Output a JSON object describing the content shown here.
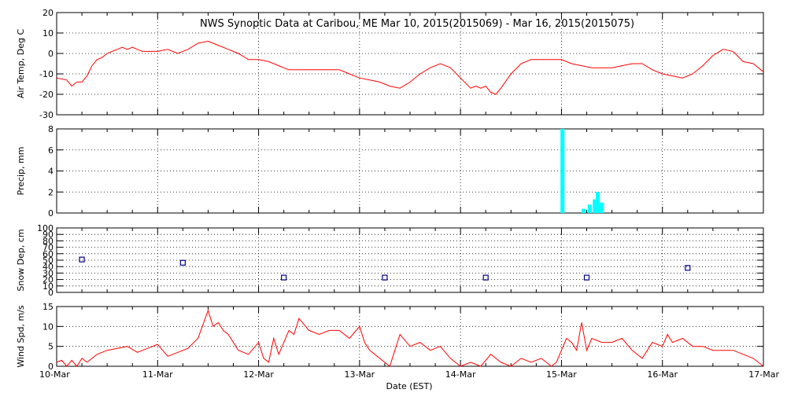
{
  "title": "NWS Synoptic Data at Caribou, ME    Mar 10, 2015(2015069) - Mar 16, 2015(2015075)",
  "xlabel": "Date (EST)",
  "x_ticks": [
    "10-Mar",
    "11-Mar",
    "12-Mar",
    "13-Mar",
    "14-Mar",
    "15-Mar",
    "16-Mar",
    "17-Mar"
  ],
  "colors": {
    "line": "#ff0000",
    "bar": "#00ffff",
    "marker": "#00008b",
    "axis": "#000000"
  },
  "chart_data": [
    {
      "type": "line",
      "ylabel": "Air Temp, Deg C",
      "ylim": [
        -30,
        20
      ],
      "yticks": [
        -30,
        -20,
        -10,
        0,
        10,
        20
      ],
      "grid": true,
      "series": [
        {
          "x": [
            0.0,
            0.1,
            0.15,
            0.2,
            0.25,
            0.3,
            0.35,
            0.4,
            0.45,
            0.5,
            0.55,
            0.6,
            0.65,
            0.7,
            0.75,
            0.8,
            0.85,
            0.9,
            1.0,
            1.1,
            1.2,
            1.3,
            1.4,
            1.5,
            1.6,
            1.7,
            1.8,
            1.9,
            2.0,
            2.1,
            2.2,
            2.3,
            2.4,
            2.5,
            2.6,
            2.7,
            2.8,
            2.9,
            3.0,
            3.1,
            3.2,
            3.3,
            3.4,
            3.5,
            3.6,
            3.7,
            3.8,
            3.9,
            4.0,
            4.1,
            4.15,
            4.2,
            4.25,
            4.3,
            4.35,
            4.4,
            4.5,
            4.6,
            4.7,
            4.8,
            4.9,
            5.0,
            5.1,
            5.2,
            5.3,
            5.4,
            5.5,
            5.6,
            5.7,
            5.8,
            5.9,
            6.0,
            6.1,
            6.2,
            6.3,
            6.4,
            6.5,
            6.6,
            6.7,
            6.8,
            6.9,
            7.0
          ],
          "y": [
            -12,
            -13,
            -16,
            -14,
            -14,
            -11,
            -6,
            -3,
            -2,
            0,
            1,
            2,
            3,
            2,
            3,
            2,
            1,
            1,
            1,
            2,
            0,
            2,
            5,
            6,
            4,
            2,
            0,
            -3,
            -3,
            -4,
            -6,
            -8,
            -8,
            -8,
            -8,
            -8,
            -8,
            -10,
            -12,
            -13,
            -14,
            -16,
            -17,
            -14,
            -10,
            -7,
            -5,
            -7,
            -12,
            -17,
            -16,
            -17,
            -16,
            -19,
            -20,
            -17,
            -10,
            -5,
            -3,
            -3,
            -3,
            -3,
            -5,
            -6,
            -7,
            -7,
            -7,
            -6,
            -5,
            -5,
            -8,
            -10,
            -11,
            -12,
            -10,
            -6,
            -1,
            2,
            1,
            -4,
            -5,
            -9
          ]
        }
      ]
    },
    {
      "type": "bar",
      "ylabel": "Precip, mm",
      "ylim": [
        0,
        8
      ],
      "yticks": [
        0,
        2,
        4,
        6,
        8
      ],
      "grid": true,
      "bar_width_days": 0.04,
      "x": [
        5.01,
        5.22,
        5.28,
        5.33,
        5.36,
        5.4
      ],
      "values": [
        8,
        0.4,
        0.8,
        1.3,
        2.0,
        1.0
      ]
    },
    {
      "type": "scatter",
      "ylabel": "Snow Dep, cm",
      "ylim": [
        0,
        100
      ],
      "yticks": [
        0,
        10,
        20,
        30,
        40,
        50,
        60,
        70,
        80,
        90,
        100
      ],
      "grid": true,
      "x": [
        0.25,
        1.25,
        2.25,
        3.25,
        4.25,
        5.25,
        6.25
      ],
      "y": [
        51,
        46,
        23,
        23,
        23,
        23,
        38
      ]
    },
    {
      "type": "line",
      "ylabel": "Wind Spd, m/s",
      "ylim": [
        0,
        15
      ],
      "yticks": [
        0,
        5,
        10,
        15
      ],
      "grid": true,
      "series": [
        {
          "x": [
            0.0,
            0.05,
            0.1,
            0.15,
            0.2,
            0.25,
            0.3,
            0.35,
            0.4,
            0.45,
            0.5,
            0.6,
            0.7,
            0.8,
            0.9,
            1.0,
            1.05,
            1.1,
            1.2,
            1.3,
            1.4,
            1.5,
            1.55,
            1.6,
            1.65,
            1.7,
            1.8,
            1.9,
            2.0,
            2.05,
            2.1,
            2.15,
            2.2,
            2.3,
            2.35,
            2.4,
            2.5,
            2.6,
            2.7,
            2.8,
            2.9,
            3.0,
            3.05,
            3.1,
            3.2,
            3.3,
            3.4,
            3.5,
            3.6,
            3.7,
            3.8,
            3.9,
            4.0,
            4.1,
            4.2,
            4.3,
            4.4,
            4.5,
            4.6,
            4.7,
            4.8,
            4.9,
            4.95,
            5.0,
            5.05,
            5.1,
            5.15,
            5.2,
            5.25,
            5.3,
            5.4,
            5.5,
            5.6,
            5.7,
            5.8,
            5.9,
            6.0,
            6.05,
            6.1,
            6.2,
            6.3,
            6.4,
            6.5,
            6.6,
            6.7,
            6.8,
            6.9,
            7.0
          ],
          "y": [
            1,
            1.5,
            0,
            1.5,
            0,
            2,
            1,
            2,
            3,
            3.5,
            4,
            4.5,
            5,
            3.5,
            4.5,
            5.5,
            4,
            2.5,
            3.5,
            4.5,
            7,
            14,
            10,
            11,
            9,
            8,
            4,
            3,
            6,
            2,
            1,
            7,
            3,
            9,
            8,
            12,
            9,
            8,
            9,
            9,
            7,
            10,
            6,
            4,
            2,
            0,
            8,
            5,
            6,
            4,
            5,
            2,
            0,
            1,
            0,
            3,
            1,
            0,
            2,
            1,
            2,
            0,
            1,
            4,
            7,
            6,
            4,
            11,
            4,
            7,
            6,
            6,
            7,
            4,
            2,
            6,
            5,
            8,
            6,
            7,
            5,
            5,
            4,
            4,
            4,
            3,
            2,
            0
          ]
        }
      ]
    }
  ]
}
